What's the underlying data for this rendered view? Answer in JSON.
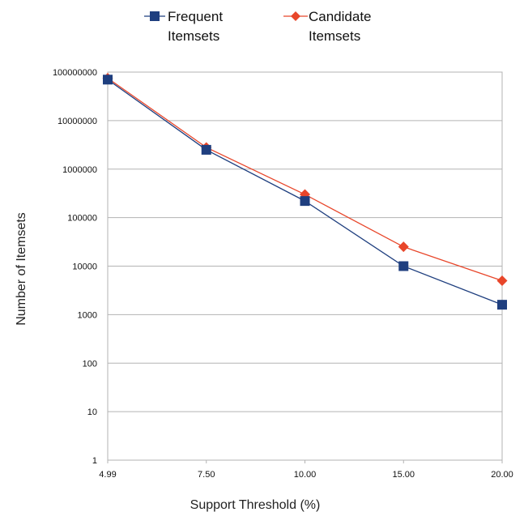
{
  "chart_data": {
    "type": "line",
    "xlabel": "Support Threshold (%)",
    "ylabel": "Number of Itemsets",
    "y_scale": "log",
    "ylim": [
      1,
      100000000
    ],
    "grid": true,
    "legend_position": "top",
    "categories": [
      "4.99",
      "7.50",
      "10.00",
      "15.00",
      "20.00"
    ],
    "y_ticks": [
      "1",
      "10",
      "100",
      "1000",
      "10000",
      "100000",
      "1000000",
      "10000000",
      "100000000"
    ],
    "series": [
      {
        "name_lines": [
          "Frequent",
          "Itemsets"
        ],
        "color": "#1f3f7f",
        "marker": "square",
        "values": [
          70000000,
          2500000,
          220000,
          10000,
          1600
        ]
      },
      {
        "name_lines": [
          "Candidate",
          "Itemsets"
        ],
        "color": "#e8462a",
        "marker": "diamond",
        "values": [
          75000000,
          2800000,
          300000,
          25000,
          5000
        ]
      }
    ]
  }
}
